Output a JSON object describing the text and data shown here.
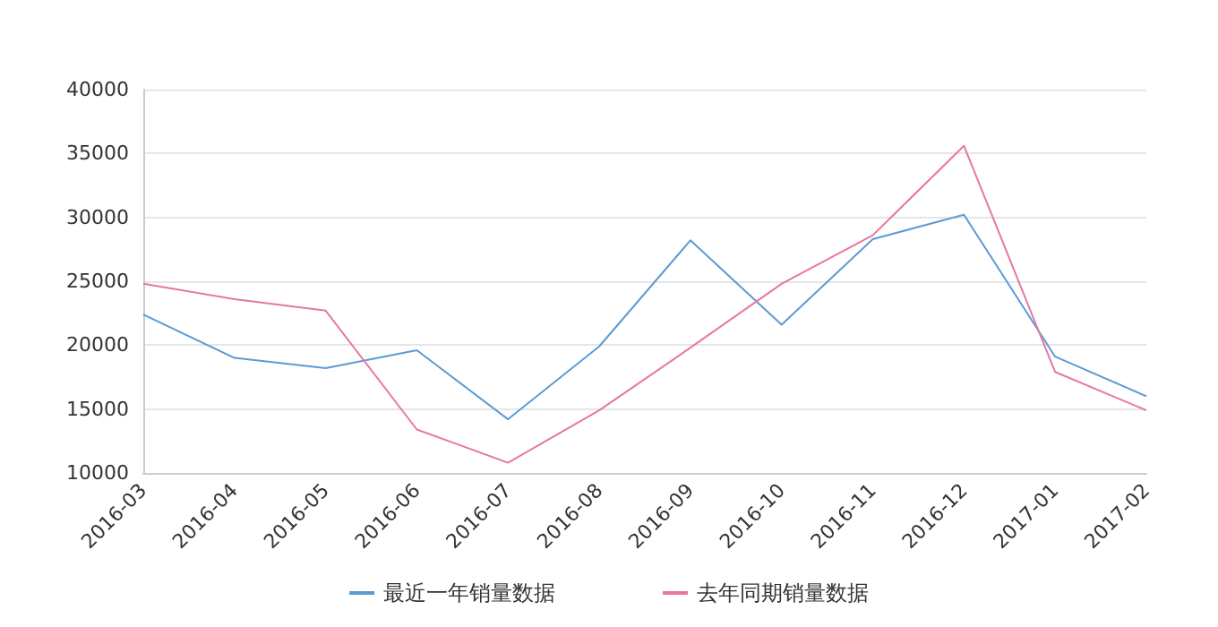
{
  "chart_data": {
    "type": "line",
    "categories": [
      "2016-03",
      "2016-04",
      "2016-05",
      "2016-06",
      "2016-07",
      "2016-08",
      "2016-09",
      "2016-10",
      "2016-11",
      "2016-12",
      "2017-01",
      "2017-02"
    ],
    "series": [
      {
        "name": "最近一年销量数据",
        "color": "#5b9bd5",
        "values": [
          22400,
          19000,
          18200,
          19600,
          14200,
          19900,
          28200,
          21600,
          28300,
          30200,
          19100,
          16000
        ]
      },
      {
        "name": "去年同期销量数据",
        "color": "#e8779f",
        "values": [
          24800,
          23600,
          22700,
          13400,
          10800,
          14900,
          19800,
          24800,
          28600,
          35600,
          17900,
          14900
        ]
      }
    ],
    "ylim": [
      10000,
      40000
    ],
    "yticks": [
      10000,
      15000,
      20000,
      25000,
      30000,
      35000,
      40000
    ],
    "grid": "y",
    "legend": "bottom",
    "marker": "none",
    "line_style": "solid"
  }
}
